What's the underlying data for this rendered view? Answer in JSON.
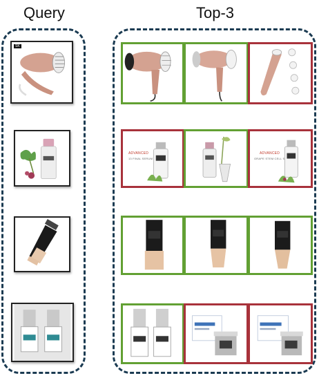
{
  "headings": {
    "query": "Query",
    "results": "Top-3"
  },
  "colors": {
    "panel_border": "#1b3b52",
    "correct_match": "#62a033",
    "wrong_match": "#a8323b"
  },
  "rows": [
    {
      "query_icon": "hair-dryer-icon",
      "results": [
        {
          "icon": "hair-dryer-icon",
          "match": "correct"
        },
        {
          "icon": "hair-dryer-icon",
          "match": "correct"
        },
        {
          "icon": "pore-vacuum-icon",
          "match": "wrong"
        }
      ]
    },
    {
      "query_icon": "serum-bottle-icon",
      "results": [
        {
          "icon": "serum-bottle-icon",
          "match": "wrong",
          "label_line1": "ADVANCED",
          "label_line2": "13 FINAL SERUM"
        },
        {
          "icon": "serum-bottle-icon",
          "match": "correct"
        },
        {
          "icon": "serum-bottle-icon",
          "match": "wrong",
          "label_line1": "ADVANCED",
          "label_line2": "GRAPE STEM CELL SERUM"
        }
      ]
    },
    {
      "query_icon": "concealer-tube-icon",
      "results": [
        {
          "icon": "concealer-tube-icon",
          "match": "correct"
        },
        {
          "icon": "concealer-tube-icon",
          "match": "correct"
        },
        {
          "icon": "concealer-tube-icon",
          "match": "correct"
        }
      ]
    },
    {
      "query_icon": "nail-polish-bottles-icon",
      "results": [
        {
          "icon": "nail-polish-bottles-icon",
          "match": "correct"
        },
        {
          "icon": "cream-jar-icon",
          "match": "wrong"
        },
        {
          "icon": "cream-jar-icon",
          "match": "wrong"
        }
      ]
    }
  ]
}
